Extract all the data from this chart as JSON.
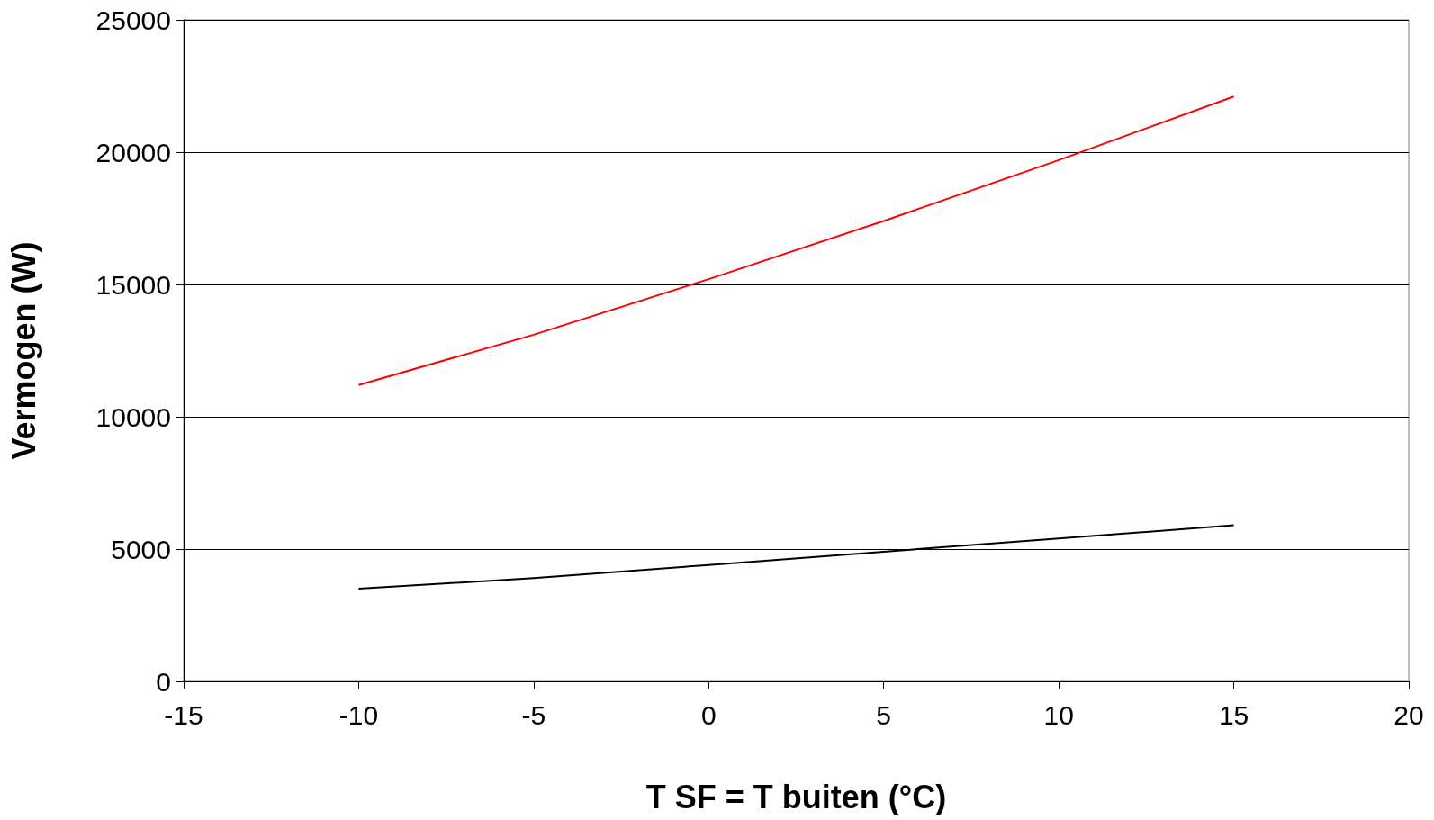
{
  "chart_data": {
    "type": "line",
    "xlabel": "T SF = T buiten (°C)",
    "ylabel": "Vermogen (W)",
    "x": [
      -10,
      -5,
      0,
      5,
      10,
      15
    ],
    "series": [
      {
        "color": "#ff0000",
        "values": [
          11200,
          13100,
          15200,
          17400,
          19700,
          22100
        ]
      },
      {
        "color": "#000000",
        "values": [
          3500,
          3900,
          4400,
          4900,
          5400,
          5900
        ]
      }
    ],
    "xlim": [
      -15,
      20
    ],
    "xticks": [
      -15,
      -10,
      -5,
      0,
      5,
      10,
      15,
      20
    ],
    "ylim": [
      0,
      25000
    ],
    "yticks": [
      0,
      5000,
      10000,
      15000,
      20000,
      25000
    ],
    "grid": "y",
    "marker": "none",
    "line_style": "solid"
  }
}
